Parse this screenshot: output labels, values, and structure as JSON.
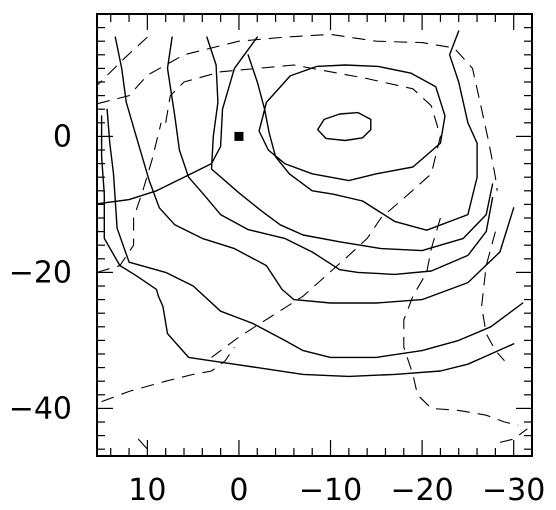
{
  "chart_data": {
    "type": "contour",
    "title": "",
    "xlabel": "",
    "ylabel": "",
    "xlim": [
      15.5,
      -32
    ],
    "ylim": [
      -47,
      18
    ],
    "x_ticks": [
      {
        "value": 10,
        "label": "10"
      },
      {
        "value": 0,
        "label": "0"
      },
      {
        "value": -10,
        "label": "−10"
      },
      {
        "value": -20,
        "label": "−20"
      },
      {
        "value": -30,
        "label": "−30"
      }
    ],
    "y_ticks": [
      {
        "value": 0,
        "label": "0"
      },
      {
        "value": -20,
        "label": "−20"
      },
      {
        "value": -40,
        "label": "−40"
      }
    ],
    "x_minor_step": 2,
    "y_minor_step": 2,
    "marker": {
      "x": 0,
      "y": 0,
      "shape": "square",
      "color": "#000000"
    },
    "solid_contours": [
      {
        "name": "",
        "closed": true,
        "points": [
          [
            -8.6,
            1.0
          ],
          [
            -9.3,
            2.5
          ],
          [
            -11.0,
            3.3
          ],
          [
            -13.0,
            3.5
          ],
          [
            -14.4,
            2.5
          ],
          [
            -14.4,
            1.0
          ],
          [
            -13.5,
            -0.2
          ],
          [
            -11.6,
            -0.6
          ],
          [
            -9.5,
            -0.3
          ],
          [
            -8.6,
            1.0
          ]
        ]
      },
      {
        "name": "",
        "closed": true,
        "points": [
          [
            -3.0,
            5.0
          ],
          [
            -5.6,
            8.9
          ],
          [
            -8.5,
            10.3
          ],
          [
            -11.6,
            10.5
          ],
          [
            -15.2,
            10.3
          ],
          [
            -18.8,
            9.3
          ],
          [
            -21.5,
            7.3
          ],
          [
            -22.5,
            3.0
          ],
          [
            -22.0,
            -1.0
          ],
          [
            -19.0,
            -4.5
          ],
          [
            -15.0,
            -5.5
          ],
          [
            -12.0,
            -6.5
          ],
          [
            -8.0,
            -5.5
          ],
          [
            -5.0,
            -4.0
          ],
          [
            -3.2,
            -2.0
          ],
          [
            -2.2,
            0.8
          ],
          [
            -3.0,
            5.0
          ]
        ]
      },
      {
        "name": "",
        "closed": false,
        "points": [
          [
            -2.0,
            14.6
          ],
          [
            0.5,
            10.0
          ],
          [
            1.8,
            4.0
          ],
          [
            2.0,
            -1.5
          ],
          [
            3.0,
            -4.0
          ],
          [
            6.0,
            -6.0
          ],
          [
            9.0,
            -8.0
          ],
          [
            12.0,
            -9.3
          ],
          [
            16.0,
            -10.0
          ],
          [
            19.0,
            -11.0
          ],
          [
            22.0,
            -10.5
          ],
          [
            24.0,
            -6.0
          ],
          [
            25.0,
            -1.0
          ],
          [
            25.5,
            5.0
          ],
          [
            24.5,
            10.0
          ]
        ]
      },
      {
        "name": "",
        "closed": false,
        "points": [
          [
            -1.0,
            12.0
          ],
          [
            -2.0,
            8.0
          ],
          [
            -2.8,
            4.0
          ],
          [
            -3.3,
            0.5
          ],
          [
            -4.0,
            -3.0
          ],
          [
            -5.5,
            -5.5
          ],
          [
            -8.0,
            -8.0
          ],
          [
            -10.3,
            -8.5
          ],
          [
            -13.5,
            -9.5
          ],
          [
            -17.0,
            -12.5
          ],
          [
            -20.5,
            -13.8
          ],
          [
            -25.0,
            -11.5
          ],
          [
            -26.0,
            -6.0
          ],
          [
            -26.0,
            -1.0
          ],
          [
            -25.0,
            2.0
          ],
          [
            -24.0,
            8.0
          ],
          [
            -23.0,
            12.0
          ],
          [
            -24.0,
            15.5
          ]
        ]
      },
      {
        "name": "",
        "closed": false,
        "points": [
          [
            3.5,
            14.6
          ],
          [
            2.5,
            10.5
          ],
          [
            2.3,
            5.0
          ],
          [
            2.8,
            0.0
          ],
          [
            3.0,
            -4.8
          ],
          [
            0.0,
            -8.3
          ],
          [
            -2.5,
            -11.0
          ],
          [
            -4.5,
            -13.0
          ],
          [
            -7.0,
            -14.5
          ],
          [
            -11.0,
            -15.5
          ],
          [
            -15.5,
            -16.5
          ],
          [
            -20.0,
            -16.8
          ],
          [
            -24.5,
            -15.0
          ],
          [
            -27.0,
            -11.5
          ],
          [
            -27.7,
            -7.0
          ]
        ]
      },
      {
        "name": "",
        "closed": false,
        "points": [
          [
            -27.7,
            -9.0
          ],
          [
            -27.0,
            -14.0
          ],
          [
            -25.0,
            -17.5
          ],
          [
            -21.0,
            -19.8
          ],
          [
            -17.0,
            -20.3
          ],
          [
            -13.0,
            -20.0
          ],
          [
            -11.0,
            -19.6
          ],
          [
            -8.0,
            -17.0
          ],
          [
            -5.0,
            -15.0
          ],
          [
            -1.0,
            -13.7
          ],
          [
            2.0,
            -11.5
          ],
          [
            4.0,
            -8.3
          ],
          [
            5.5,
            -6.0
          ],
          [
            6.5,
            -2.0
          ],
          [
            7.0,
            3.0
          ],
          [
            7.8,
            10.0
          ],
          [
            7.3,
            14.6
          ]
        ]
      },
      {
        "name": "",
        "closed": false,
        "points": [
          [
            -30.0,
            -10.5
          ],
          [
            -28.5,
            -17.0
          ],
          [
            -25.0,
            -21.5
          ],
          [
            -20.0,
            -24.0
          ],
          [
            -15.0,
            -24.5
          ],
          [
            -10.0,
            -24.5
          ],
          [
            -6.0,
            -24.0
          ],
          [
            -4.7,
            -22.5
          ],
          [
            -3.0,
            -19.0
          ],
          [
            0.5,
            -16.5
          ],
          [
            4.0,
            -15.0
          ],
          [
            7.0,
            -13.0
          ],
          [
            8.7,
            -10.5
          ],
          [
            9.8,
            -6.5
          ],
          [
            11.0,
            -1.0
          ],
          [
            12.3,
            5.0
          ],
          [
            12.8,
            10.0
          ],
          [
            13.5,
            14.6
          ]
        ]
      },
      {
        "name": "",
        "closed": false,
        "points": [
          [
            -31.0,
            -24.5
          ],
          [
            -27.5,
            -28.0
          ],
          [
            -24.0,
            -30.0
          ],
          [
            -20.0,
            -31.5
          ],
          [
            -15.0,
            -32.5
          ],
          [
            -10.0,
            -32.5
          ],
          [
            -7.0,
            -31.5
          ],
          [
            -5.0,
            -30.0
          ],
          [
            -1.5,
            -27.5
          ],
          [
            2.0,
            -25.7
          ],
          [
            5.0,
            -22.0
          ],
          [
            8.0,
            -20.0
          ],
          [
            12.0,
            -18.5
          ],
          [
            13.3,
            -13.5
          ],
          [
            13.7,
            -5.5
          ],
          [
            14.1,
            -1.0
          ],
          [
            14.4,
            4.0
          ]
        ]
      },
      {
        "name": "",
        "closed": false,
        "points": [
          [
            -30.0,
            -30.5
          ],
          [
            -27.5,
            -32.0
          ],
          [
            -25.0,
            -33.5
          ],
          [
            -22.0,
            -34.5
          ],
          [
            -17.0,
            -35.0
          ],
          [
            -12.0,
            -35.3
          ],
          [
            -7.0,
            -35.0
          ],
          [
            -2.0,
            -34.0
          ],
          [
            2.0,
            -33.2
          ],
          [
            5.5,
            -32.5
          ],
          [
            7.8,
            -29.0
          ],
          [
            8.3,
            -25.0
          ],
          [
            8.8,
            -23.5
          ],
          [
            9.0,
            -22.5
          ],
          [
            11.2,
            -20.5
          ],
          [
            13.0,
            -19.0
          ],
          [
            14.7,
            -15.0
          ],
          [
            14.7,
            -8.5
          ],
          [
            15.0,
            -3.0
          ],
          [
            15.0,
            3.0
          ]
        ]
      }
    ],
    "dashed_contours": [
      {
        "name": "",
        "closed": false,
        "points": [
          [
            10.0,
            14.6
          ],
          [
            12.5,
            11.5
          ],
          [
            15.5,
            7.5
          ]
        ]
      },
      {
        "name": "",
        "closed": false,
        "points": [
          [
            15.5,
            4.8
          ],
          [
            12.0,
            6.0
          ],
          [
            10.0,
            9.0
          ],
          [
            6.0,
            12.0
          ],
          [
            0.0,
            14.0
          ],
          [
            -5.0,
            14.6
          ],
          [
            -10.0,
            15.0
          ],
          [
            -15.0,
            14.0
          ],
          [
            -20.0,
            13.8
          ],
          [
            -23.5,
            13.0
          ],
          [
            -25.5,
            10.0
          ],
          [
            -26.5,
            4.0
          ],
          [
            -27.3,
            -1.0
          ],
          [
            -28.0,
            -6.0
          ],
          [
            -28.2,
            -8.0
          ]
        ]
      },
      {
        "name": "",
        "closed": false,
        "points": [
          [
            8.0,
            2.0
          ],
          [
            7.5,
            6.0
          ],
          [
            6.0,
            8.0
          ],
          [
            2.0,
            9.5
          ],
          [
            -2.0,
            10.0
          ],
          [
            -6.0,
            10.5
          ],
          [
            -10.0,
            9.5
          ],
          [
            -14.0,
            8.5
          ],
          [
            -19.0,
            7.0
          ],
          [
            -21.0,
            4.5
          ],
          [
            -22.0,
            0.0
          ],
          [
            -21.0,
            -5.5
          ],
          [
            -18.5,
            -8.5
          ],
          [
            -15.5,
            -12.0
          ],
          [
            -14.0,
            -15.0
          ],
          [
            -12.0,
            -17.5
          ],
          [
            -9.5,
            -20.5
          ],
          [
            -7.0,
            -23.5
          ],
          [
            -3.5,
            -26.5
          ],
          [
            0.0,
            -29.5
          ],
          [
            3.0,
            -32.5
          ]
        ]
      },
      {
        "name": "",
        "closed": false,
        "points": [
          [
            15.5,
            -20.0
          ],
          [
            13.0,
            -19.0
          ],
          [
            11.5,
            -16.0
          ],
          [
            11.5,
            -12.0
          ],
          [
            10.5,
            -8.0
          ],
          [
            9.5,
            -3.5
          ],
          [
            8.5,
            2.0
          ]
        ]
      },
      {
        "name": "",
        "closed": false,
        "points": [
          [
            15.0,
            -39.0
          ],
          [
            12.0,
            -37.5
          ],
          [
            8.0,
            -36.0
          ],
          [
            5.0,
            -35.0
          ],
          [
            3.0,
            -34.5
          ],
          [
            1.5,
            -33.0
          ],
          [
            0.5,
            -31.0
          ]
        ]
      },
      {
        "name": "",
        "closed": false,
        "points": [
          [
            -28.0,
            -14.0
          ],
          [
            -27.0,
            -19.0
          ],
          [
            -26.5,
            -25.0
          ],
          [
            -27.0,
            -29.0
          ],
          [
            -28.0,
            -31.5
          ],
          [
            -29.0,
            -33.0
          ]
        ]
      },
      {
        "name": "",
        "closed": false,
        "points": [
          [
            -22.0,
            -12.0
          ],
          [
            -21.0,
            -16.5
          ],
          [
            -20.5,
            -20.0
          ],
          [
            -19.0,
            -23.5
          ],
          [
            -18.0,
            -27.0
          ],
          [
            -18.0,
            -31.0
          ],
          [
            -19.0,
            -35.0
          ],
          [
            -19.5,
            -38.0
          ],
          [
            -21.0,
            -40.0
          ],
          [
            -24.0,
            -40.3
          ],
          [
            -27.0,
            -41.0
          ],
          [
            -29.0,
            -42.0
          ],
          [
            -30.5,
            -42.5
          ]
        ]
      },
      {
        "name": "",
        "closed": false,
        "points": [
          [
            -28.5,
            -45.0
          ],
          [
            -30.0,
            -44.5
          ],
          [
            -31.5,
            -43.0
          ]
        ]
      },
      {
        "name": "",
        "closed": false,
        "points": [
          [
            11.0,
            -44.5
          ],
          [
            10.0,
            -46.0
          ]
        ]
      }
    ]
  }
}
